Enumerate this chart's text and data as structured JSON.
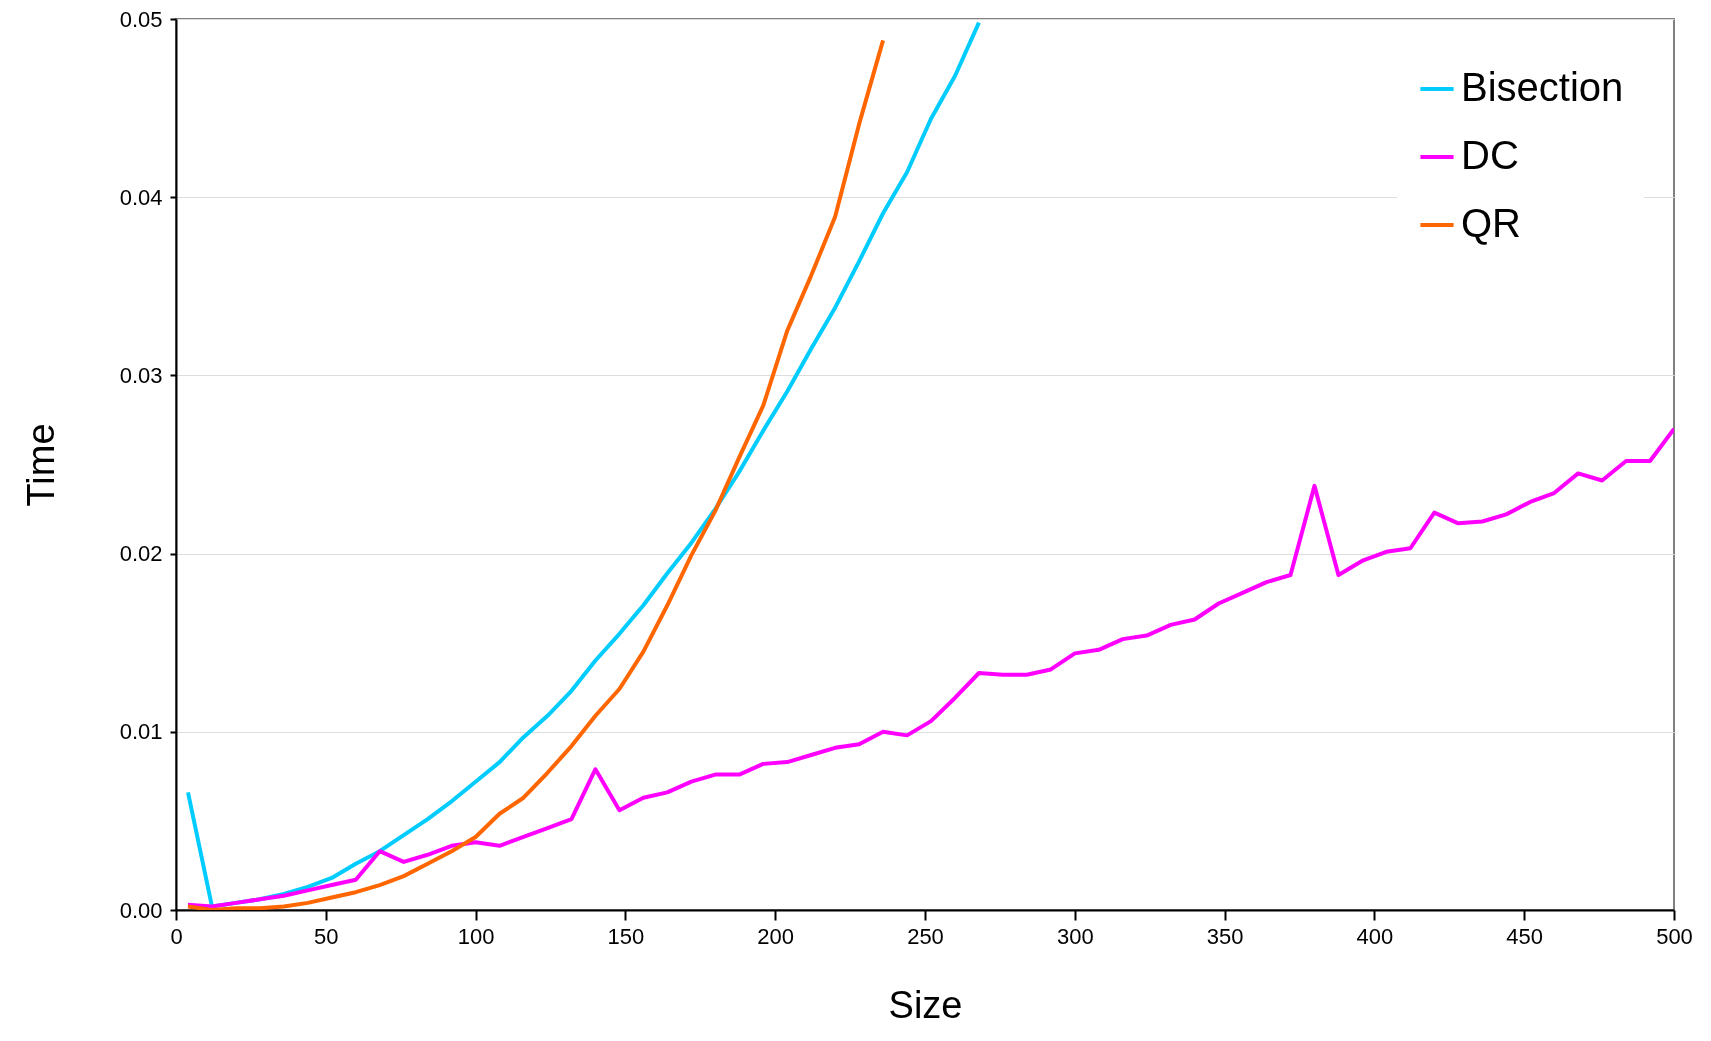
{
  "chart_data": {
    "type": "line",
    "xlabel": "Size",
    "ylabel": "Time",
    "x": [
      4,
      12,
      20,
      28,
      36,
      44,
      52,
      60,
      68,
      76,
      84,
      92,
      100,
      108,
      116,
      124,
      132,
      140,
      148,
      156,
      164,
      172,
      180,
      188,
      196,
      204,
      212,
      220,
      228,
      236,
      244,
      252,
      260,
      268,
      276,
      284,
      292,
      300,
      308,
      316,
      324,
      332,
      340,
      348,
      356,
      364,
      372,
      380,
      388,
      396,
      404,
      412,
      420,
      428,
      436,
      444,
      452,
      460,
      468,
      476,
      484,
      492,
      500
    ],
    "series": [
      {
        "name": "Bisection",
        "color": "#00ccff",
        "values": [
          0.0066,
          0.0002,
          0.0004,
          0.0006,
          0.0009,
          0.0013,
          0.0018,
          0.0026,
          0.0033,
          0.0042,
          0.0051,
          0.0061,
          0.0072,
          0.0083,
          0.0097,
          0.0109,
          0.0123,
          0.014,
          0.0155,
          0.0171,
          0.0189,
          0.0206,
          0.0225,
          0.0246,
          0.0269,
          0.0291,
          0.0315,
          0.0338,
          0.0364,
          0.0391,
          0.0414,
          0.0444,
          0.0468,
          0.0498,
          null,
          null,
          null,
          null,
          null,
          null,
          null,
          null,
          null,
          null,
          null,
          null,
          null,
          null,
          null,
          null,
          null,
          null,
          null,
          null,
          null,
          null,
          null,
          null,
          null,
          null,
          null,
          null,
          null
        ]
      },
      {
        "name": "DC",
        "color": "#ff00ff",
        "values": [
          0.0003,
          0.0002,
          0.0004,
          0.0006,
          0.0008,
          0.0011,
          0.0014,
          0.0017,
          0.0033,
          0.0027,
          0.0031,
          0.0036,
          0.0038,
          0.0036,
          0.0041,
          0.0046,
          0.0051,
          0.0079,
          0.0056,
          0.0063,
          0.0066,
          0.0072,
          0.0076,
          0.0076,
          0.0082,
          0.0083,
          0.0087,
          0.0091,
          0.0093,
          0.01,
          0.0098,
          0.0106,
          0.0119,
          0.0133,
          0.0132,
          0.0132,
          0.0135,
          0.0144,
          0.0146,
          0.0152,
          0.0154,
          0.016,
          0.0163,
          0.0172,
          0.0178,
          0.0184,
          0.0188,
          0.0238,
          0.0188,
          0.0196,
          0.0201,
          0.0203,
          0.0223,
          0.0217,
          0.0218,
          0.0222,
          0.0229,
          0.0234,
          0.0245,
          0.0241,
          0.0252,
          0.0252,
          0.027
        ]
      },
      {
        "name": "QR",
        "color": "#ff6600",
        "values": [
          0.0002,
          0.0,
          0.0001,
          0.0001,
          0.0002,
          0.0004,
          0.0007,
          0.001,
          0.0014,
          0.0019,
          0.0026,
          0.0033,
          0.0041,
          0.0054,
          0.0063,
          0.0077,
          0.0092,
          0.0109,
          0.0124,
          0.0145,
          0.0171,
          0.0199,
          0.0224,
          0.0254,
          0.0283,
          0.0325,
          0.0356,
          0.0389,
          0.0441,
          0.0488,
          null,
          null,
          null,
          null,
          null,
          null,
          null,
          null,
          null,
          null,
          null,
          null,
          null,
          null,
          null,
          null,
          null,
          null,
          null,
          null,
          null,
          null,
          null,
          null,
          null,
          null,
          null,
          null,
          null,
          null,
          null,
          null,
          null
        ]
      }
    ],
    "xlim": [
      0,
      500
    ],
    "xticks": [
      0,
      50,
      100,
      150,
      200,
      250,
      300,
      350,
      400,
      450,
      500
    ],
    "ylim": [
      0,
      0.05
    ],
    "yticks": [
      {
        "value": 0,
        "label": "0.00"
      },
      0.01,
      0.02,
      0.03,
      0.04,
      0.05
    ],
    "grid": "y",
    "legend": "top right"
  }
}
